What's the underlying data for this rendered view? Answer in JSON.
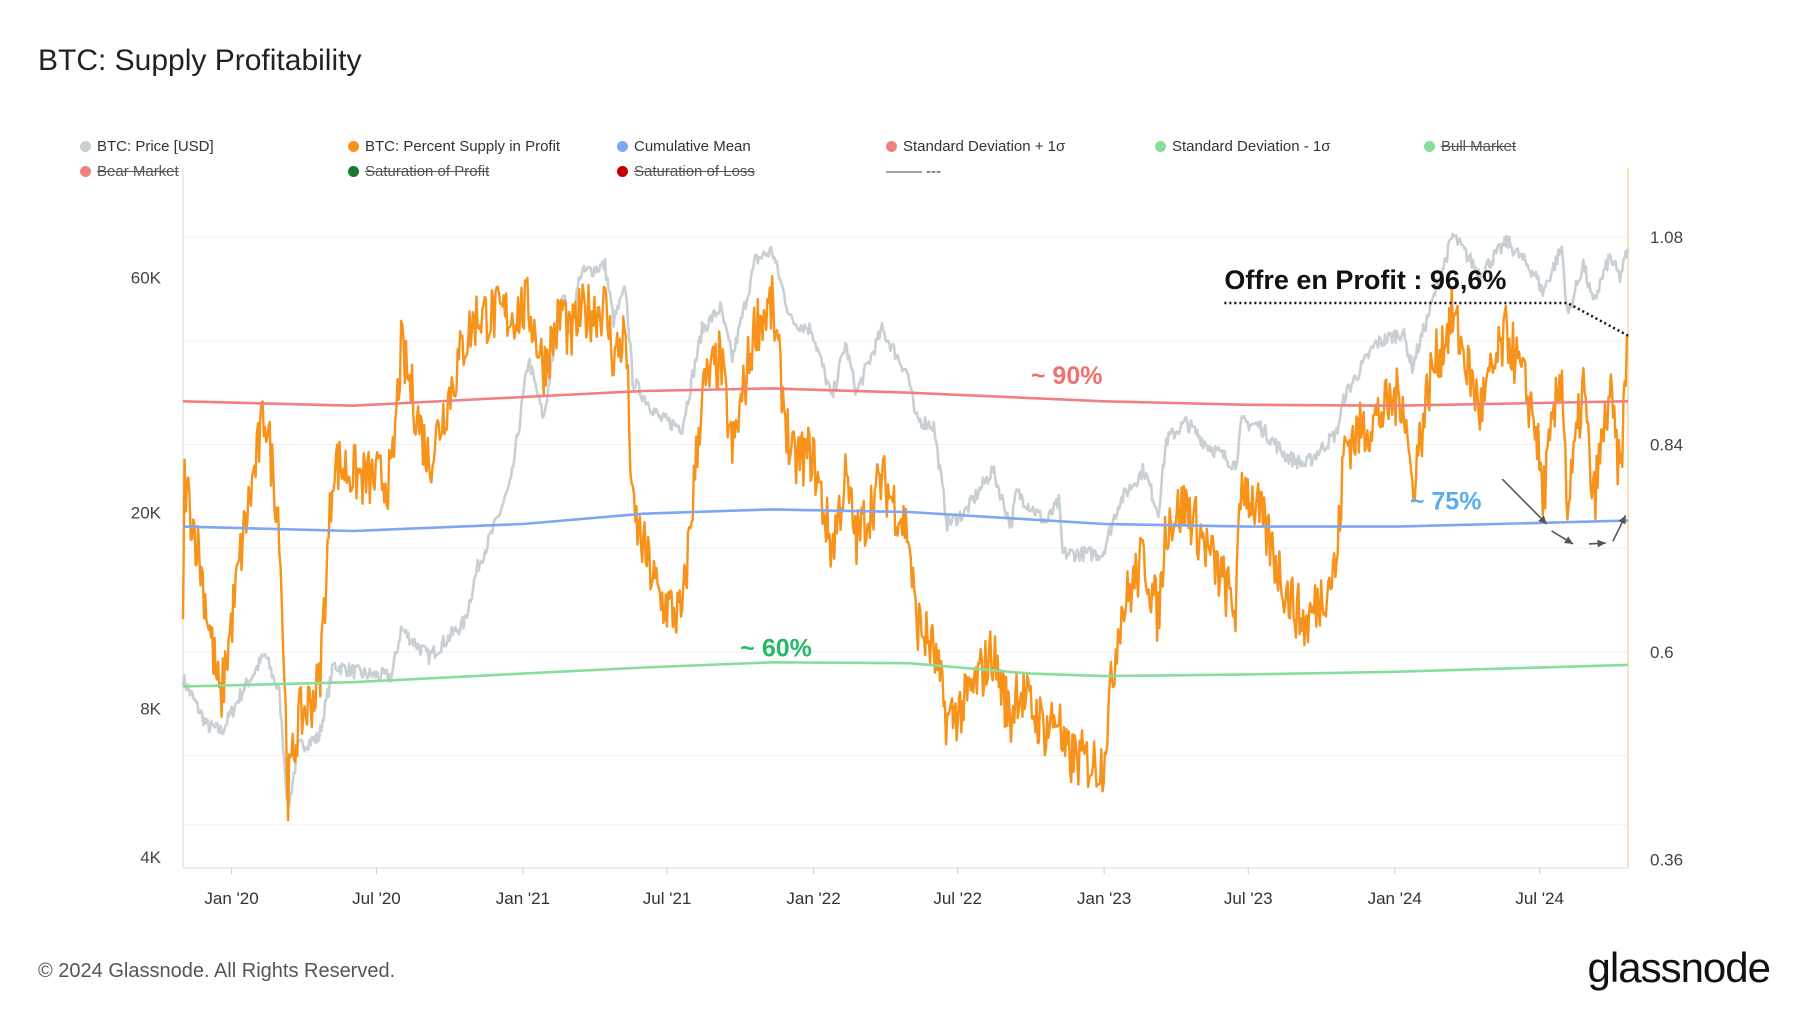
{
  "title": "BTC: Supply Profitability",
  "footer": "© 2024 Glassnode. All Rights Reserved.",
  "brand": "glassnode",
  "legend": [
    {
      "label": "BTC: Price [USD]",
      "color": "#c8d0d4",
      "struck": false
    },
    {
      "label": "BTC: Percent Supply in Profit",
      "color": "#f7931a",
      "struck": false
    },
    {
      "label": "Cumulative Mean",
      "color": "#7ea6f3",
      "struck": false
    },
    {
      "label": "Standard Deviation + 1σ",
      "color": "#f08080",
      "struck": false
    },
    {
      "label": "Standard Deviation - 1σ",
      "color": "#88dd99",
      "struck": false
    },
    {
      "label": "Bull Market",
      "color": "#88dd99",
      "struck": true
    },
    {
      "label": "Bear Market",
      "color": "#f08080",
      "struck": true
    },
    {
      "label": "Saturation of Profit",
      "color": "#1a7a2a",
      "struck": true
    },
    {
      "label": "Saturation of Loss",
      "color": "#c00000",
      "struck": true
    },
    {
      "label": "---",
      "color": "#9aa3a8",
      "struck": false,
      "line": true
    }
  ],
  "chart_data": {
    "type": "line",
    "title": "BTC: Supply Profitability",
    "x_ticks": [
      "Jan '20",
      "Jul '20",
      "Jan '21",
      "Jul '21",
      "Jan '22",
      "Jul '22",
      "Jan '23",
      "Jul '23",
      "Jan '24",
      "Jul '24"
    ],
    "left_axis": {
      "scale": "log",
      "ticks": [
        "4K",
        "8K",
        "20K",
        "60K"
      ],
      "tick_values": [
        4000,
        8000,
        20000,
        60000
      ],
      "range": [
        3800,
        100000
      ]
    },
    "right_axis": {
      "scale": "linear",
      "ticks": [
        "0.36",
        "0.6",
        "0.84",
        "1.08"
      ],
      "tick_values": [
        0.36,
        0.6,
        0.84,
        1.08
      ],
      "range": [
        0.35,
        1.16
      ]
    },
    "x_range": [
      "2019-11-01",
      "2024-10-20"
    ],
    "series": [
      {
        "name": "BTC: Price [USD]",
        "axis": "left",
        "color": "#c8d0d4",
        "points": [
          [
            "2019-11-01",
            9200
          ],
          [
            "2019-12-01",
            7400
          ],
          [
            "2019-12-20",
            7200
          ],
          [
            "2020-01-15",
            8700
          ],
          [
            "2020-02-12",
            10300
          ],
          [
            "2020-03-01",
            8600
          ],
          [
            "2020-03-12",
            5000
          ],
          [
            "2020-03-25",
            6700
          ],
          [
            "2020-04-20",
            7000
          ],
          [
            "2020-05-08",
            9800
          ],
          [
            "2020-06-15",
            9400
          ],
          [
            "2020-07-20",
            9300
          ],
          [
            "2020-08-01",
            11600
          ],
          [
            "2020-09-05",
            10200
          ],
          [
            "2020-10-20",
            12000
          ],
          [
            "2020-11-05",
            15500
          ],
          [
            "2020-11-25",
            18500
          ],
          [
            "2020-12-17",
            23000
          ],
          [
            "2021-01-08",
            41000
          ],
          [
            "2021-01-27",
            31000
          ],
          [
            "2021-02-21",
            57000
          ],
          [
            "2021-02-28",
            45000
          ],
          [
            "2021-03-14",
            61000
          ],
          [
            "2021-04-14",
            63500
          ],
          [
            "2021-04-25",
            49000
          ],
          [
            "2021-05-10",
            57000
          ],
          [
            "2021-05-19",
            37000
          ],
          [
            "2021-06-22",
            31000
          ],
          [
            "2021-07-20",
            29800
          ],
          [
            "2021-08-14",
            47000
          ],
          [
            "2021-09-06",
            52000
          ],
          [
            "2021-09-21",
            41000
          ],
          [
            "2021-10-20",
            65000
          ],
          [
            "2021-11-10",
            68000
          ],
          [
            "2021-12-04",
            49000
          ],
          [
            "2021-12-30",
            47000
          ],
          [
            "2022-01-24",
            34000
          ],
          [
            "2022-02-10",
            44000
          ],
          [
            "2022-02-24",
            35000
          ],
          [
            "2022-03-28",
            47000
          ],
          [
            "2022-04-30",
            38000
          ],
          [
            "2022-05-09",
            31000
          ],
          [
            "2022-06-01",
            30000
          ],
          [
            "2022-06-18",
            19000
          ],
          [
            "2022-07-10",
            20000
          ],
          [
            "2022-08-14",
            24400
          ],
          [
            "2022-09-06",
            18800
          ],
          [
            "2022-09-13",
            22000
          ],
          [
            "2022-10-20",
            19100
          ],
          [
            "2022-11-05",
            21000
          ],
          [
            "2022-11-10",
            16500
          ],
          [
            "2022-12-30",
            16500
          ],
          [
            "2023-01-20",
            21000
          ],
          [
            "2023-02-20",
            24500
          ],
          [
            "2023-03-10",
            20000
          ],
          [
            "2023-03-20",
            28000
          ],
          [
            "2023-04-14",
            30500
          ],
          [
            "2023-05-10",
            27500
          ],
          [
            "2023-06-15",
            25000
          ],
          [
            "2023-06-23",
            30500
          ],
          [
            "2023-07-15",
            30000
          ],
          [
            "2023-08-18",
            26000
          ],
          [
            "2023-09-11",
            25000
          ],
          [
            "2023-10-20",
            29000
          ],
          [
            "2023-10-30",
            34500
          ],
          [
            "2023-12-08",
            44000
          ],
          [
            "2024-01-11",
            46500
          ],
          [
            "2024-01-23",
            39500
          ],
          [
            "2024-02-15",
            52000
          ],
          [
            "2024-03-14",
            73000
          ],
          [
            "2024-04-17",
            61000
          ],
          [
            "2024-05-21",
            71000
          ],
          [
            "2024-06-25",
            61000
          ],
          [
            "2024-07-05",
            56000
          ],
          [
            "2024-07-29",
            69000
          ],
          [
            "2024-08-05",
            50000
          ],
          [
            "2024-08-25",
            64000
          ],
          [
            "2024-09-06",
            53000
          ],
          [
            "2024-09-27",
            66000
          ],
          [
            "2024-10-10",
            60000
          ],
          [
            "2024-10-20",
            68500
          ]
        ]
      },
      {
        "name": "BTC: Percent Supply in Profit",
        "axis": "right",
        "color": "#f7931a",
        "points": [
          [
            "2019-11-01",
            0.62
          ],
          [
            "2019-11-03",
            0.8
          ],
          [
            "2019-11-20",
            0.72
          ],
          [
            "2019-12-18",
            0.54
          ],
          [
            "2020-01-15",
            0.73
          ],
          [
            "2020-02-12",
            0.88
          ],
          [
            "2020-03-01",
            0.75
          ],
          [
            "2020-03-12",
            0.44
          ],
          [
            "2020-03-25",
            0.52
          ],
          [
            "2020-04-20",
            0.56
          ],
          [
            "2020-05-08",
            0.82
          ],
          [
            "2020-06-15",
            0.8
          ],
          [
            "2020-07-20",
            0.8
          ],
          [
            "2020-08-01",
            0.95
          ],
          [
            "2020-09-05",
            0.82
          ],
          [
            "2020-10-20",
            0.96
          ],
          [
            "2020-11-05",
            0.99
          ],
          [
            "2020-12-17",
            0.99
          ],
          [
            "2021-01-08",
            1.0
          ],
          [
            "2021-01-27",
            0.93
          ],
          [
            "2021-02-21",
            1.0
          ],
          [
            "2021-02-28",
            0.96
          ],
          [
            "2021-03-14",
            0.99
          ],
          [
            "2021-04-14",
            1.0
          ],
          [
            "2021-04-25",
            0.94
          ],
          [
            "2021-05-10",
            0.97
          ],
          [
            "2021-05-19",
            0.76
          ],
          [
            "2021-06-22",
            0.66
          ],
          [
            "2021-07-20",
            0.64
          ],
          [
            "2021-08-14",
            0.9
          ],
          [
            "2021-09-06",
            0.94
          ],
          [
            "2021-09-21",
            0.83
          ],
          [
            "2021-10-20",
            0.98
          ],
          [
            "2021-11-10",
            1.0
          ],
          [
            "2021-12-04",
            0.82
          ],
          [
            "2021-12-30",
            0.83
          ],
          [
            "2022-01-24",
            0.72
          ],
          [
            "2022-02-10",
            0.8
          ],
          [
            "2022-02-24",
            0.73
          ],
          [
            "2022-03-28",
            0.8
          ],
          [
            "2022-04-30",
            0.74
          ],
          [
            "2022-05-09",
            0.64
          ],
          [
            "2022-06-01",
            0.6
          ],
          [
            "2022-06-18",
            0.52
          ],
          [
            "2022-07-10",
            0.54
          ],
          [
            "2022-08-14",
            0.6
          ],
          [
            "2022-09-06",
            0.52
          ],
          [
            "2022-09-13",
            0.56
          ],
          [
            "2022-10-20",
            0.51
          ],
          [
            "2022-11-05",
            0.53
          ],
          [
            "2022-11-10",
            0.48
          ],
          [
            "2022-12-30",
            0.47
          ],
          [
            "2023-01-20",
            0.64
          ],
          [
            "2023-02-20",
            0.71
          ],
          [
            "2023-03-10",
            0.64
          ],
          [
            "2023-03-20",
            0.75
          ],
          [
            "2023-04-14",
            0.77
          ],
          [
            "2023-05-10",
            0.72
          ],
          [
            "2023-06-15",
            0.65
          ],
          [
            "2023-06-23",
            0.8
          ],
          [
            "2023-07-15",
            0.76
          ],
          [
            "2023-08-18",
            0.67
          ],
          [
            "2023-09-11",
            0.63
          ],
          [
            "2023-10-20",
            0.7
          ],
          [
            "2023-10-30",
            0.84
          ],
          [
            "2023-12-08",
            0.87
          ],
          [
            "2024-01-11",
            0.9
          ],
          [
            "2024-01-23",
            0.79
          ],
          [
            "2024-02-15",
            0.92
          ],
          [
            "2024-03-14",
            0.99
          ],
          [
            "2024-04-17",
            0.88
          ],
          [
            "2024-05-21",
            0.97
          ],
          [
            "2024-06-25",
            0.87
          ],
          [
            "2024-07-05",
            0.78
          ],
          [
            "2024-07-29",
            0.93
          ],
          [
            "2024-08-05",
            0.76
          ],
          [
            "2024-08-25",
            0.91
          ],
          [
            "2024-09-06",
            0.77
          ],
          [
            "2024-09-27",
            0.9
          ],
          [
            "2024-10-10",
            0.8
          ],
          [
            "2024-10-20",
            0.966
          ]
        ]
      },
      {
        "name": "Cumulative Mean",
        "axis": "right",
        "color": "#7ea6f3",
        "points": [
          [
            "2019-11-01",
            0.745
          ],
          [
            "2020-06-01",
            0.74
          ],
          [
            "2021-01-01",
            0.748
          ],
          [
            "2021-06-01",
            0.76
          ],
          [
            "2021-11-10",
            0.765
          ],
          [
            "2022-05-01",
            0.762
          ],
          [
            "2023-01-01",
            0.748
          ],
          [
            "2023-07-01",
            0.745
          ],
          [
            "2024-01-01",
            0.745
          ],
          [
            "2024-10-20",
            0.752
          ]
        ]
      },
      {
        "name": "Standard Deviation + 1σ",
        "axis": "right",
        "color": "#f08080",
        "points": [
          [
            "2019-11-01",
            0.89
          ],
          [
            "2020-06-01",
            0.885
          ],
          [
            "2021-01-01",
            0.895
          ],
          [
            "2021-06-01",
            0.902
          ],
          [
            "2021-11-10",
            0.905
          ],
          [
            "2022-05-01",
            0.9
          ],
          [
            "2023-01-01",
            0.89
          ],
          [
            "2023-07-01",
            0.886
          ],
          [
            "2024-01-01",
            0.885
          ],
          [
            "2024-10-20",
            0.89
          ]
        ]
      },
      {
        "name": "Standard Deviation - 1σ",
        "axis": "right",
        "color": "#88dd99",
        "points": [
          [
            "2019-11-01",
            0.56
          ],
          [
            "2020-06-01",
            0.565
          ],
          [
            "2021-01-01",
            0.575
          ],
          [
            "2021-06-01",
            0.582
          ],
          [
            "2021-11-10",
            0.588
          ],
          [
            "2022-05-01",
            0.587
          ],
          [
            "2022-10-01",
            0.575
          ],
          [
            "2023-01-01",
            0.572
          ],
          [
            "2023-07-01",
            0.574
          ],
          [
            "2024-01-01",
            0.577
          ],
          [
            "2024-10-20",
            0.585
          ]
        ]
      }
    ],
    "annotations": [
      {
        "text": "Offre en Profit : 96,6%",
        "color": "#111111",
        "x": "2023-06-01",
        "y": 1.02
      },
      {
        "text": "~ 90%",
        "color": "#f07070",
        "x": "2022-10-01",
        "y": 0.91
      },
      {
        "text": "~ 75%",
        "color": "#5aaef0",
        "x": "2024-01-20",
        "y": 0.765
      },
      {
        "text": "~ 60%",
        "color": "#22bb66",
        "x": "2021-10-01",
        "y": 0.595
      }
    ]
  }
}
